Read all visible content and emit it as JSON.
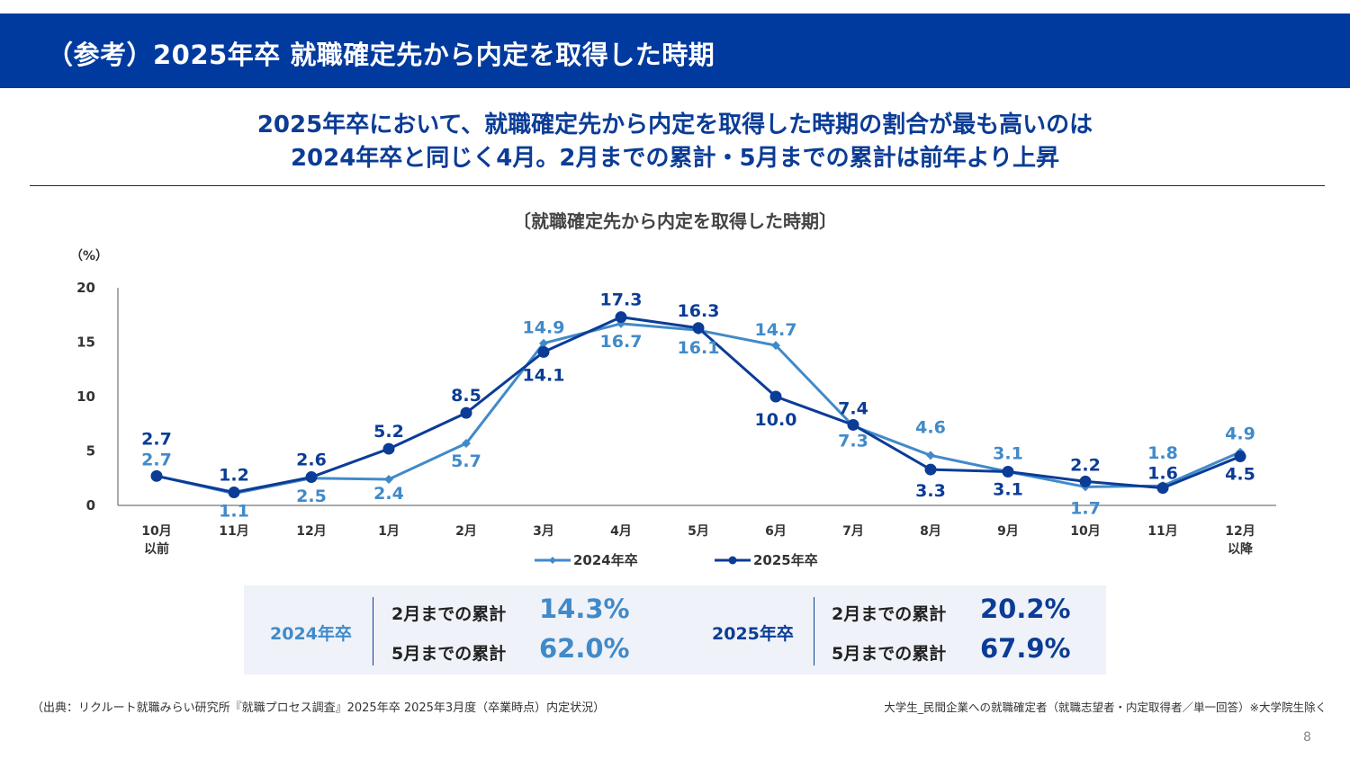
{
  "header": {
    "title": "（参考）2025年卒 就職確定先から内定を取得した時期"
  },
  "headline": {
    "line1": "2025年卒において、就職確定先から内定を取得した時期の割合が最も高いのは",
    "line2": "2024年卒と同じく4月。2月までの累計・5月までの累計は前年より上昇"
  },
  "colors": {
    "header_bg": "#003a9e",
    "series_2024": "#418ac9",
    "series_2025": "#0b3c96"
  },
  "chart_data": {
    "type": "line",
    "title": "〔就職確定先から内定を取得した時期〕",
    "ylabel": "（%）",
    "xlabel": "",
    "ylim": [
      0,
      20
    ],
    "yticks": [
      0,
      5,
      10,
      15,
      20
    ],
    "categories": [
      [
        "10月",
        "以前"
      ],
      [
        "11月"
      ],
      [
        "12月"
      ],
      [
        "1月"
      ],
      [
        "2月"
      ],
      [
        "3月"
      ],
      [
        "4月"
      ],
      [
        "5月"
      ],
      [
        "6月"
      ],
      [
        "7月"
      ],
      [
        "8月"
      ],
      [
        "9月"
      ],
      [
        "10月"
      ],
      [
        "11月"
      ],
      [
        "12月",
        "以降"
      ]
    ],
    "series": [
      {
        "name": "2024年卒",
        "color": "#418ac9",
        "marker": "diamond",
        "values": [
          2.7,
          1.1,
          2.5,
          2.4,
          5.7,
          14.9,
          16.7,
          16.1,
          14.7,
          7.3,
          4.6,
          3.1,
          1.7,
          1.8,
          4.9
        ]
      },
      {
        "name": "2025年卒",
        "color": "#0b3c96",
        "marker": "circle",
        "values": [
          2.7,
          1.2,
          2.6,
          5.2,
          8.5,
          14.1,
          17.3,
          16.3,
          10.0,
          7.4,
          3.3,
          3.1,
          2.2,
          1.6,
          4.5
        ]
      }
    ],
    "legend_position": "bottom"
  },
  "summary": {
    "y2024": {
      "name": "2024年卒",
      "feb_label": "2月までの累計",
      "feb_value": "14.3%",
      "may_label": "5月までの累計",
      "may_value": "62.0%"
    },
    "y2025": {
      "name": "2025年卒",
      "feb_label": "2月までの累計",
      "feb_value": "20.2%",
      "may_label": "5月までの累計",
      "may_value": "67.9%"
    }
  },
  "footer": {
    "source": "（出典：リクルート就職みらい研究所『就職プロセス調査』2025年卒 2025年3月度（卒業時点）内定状況）",
    "note": "大学生_民間企業への就職確定者（就職志望者・内定取得者／単一回答）※大学院生除く",
    "page_number": "8"
  }
}
